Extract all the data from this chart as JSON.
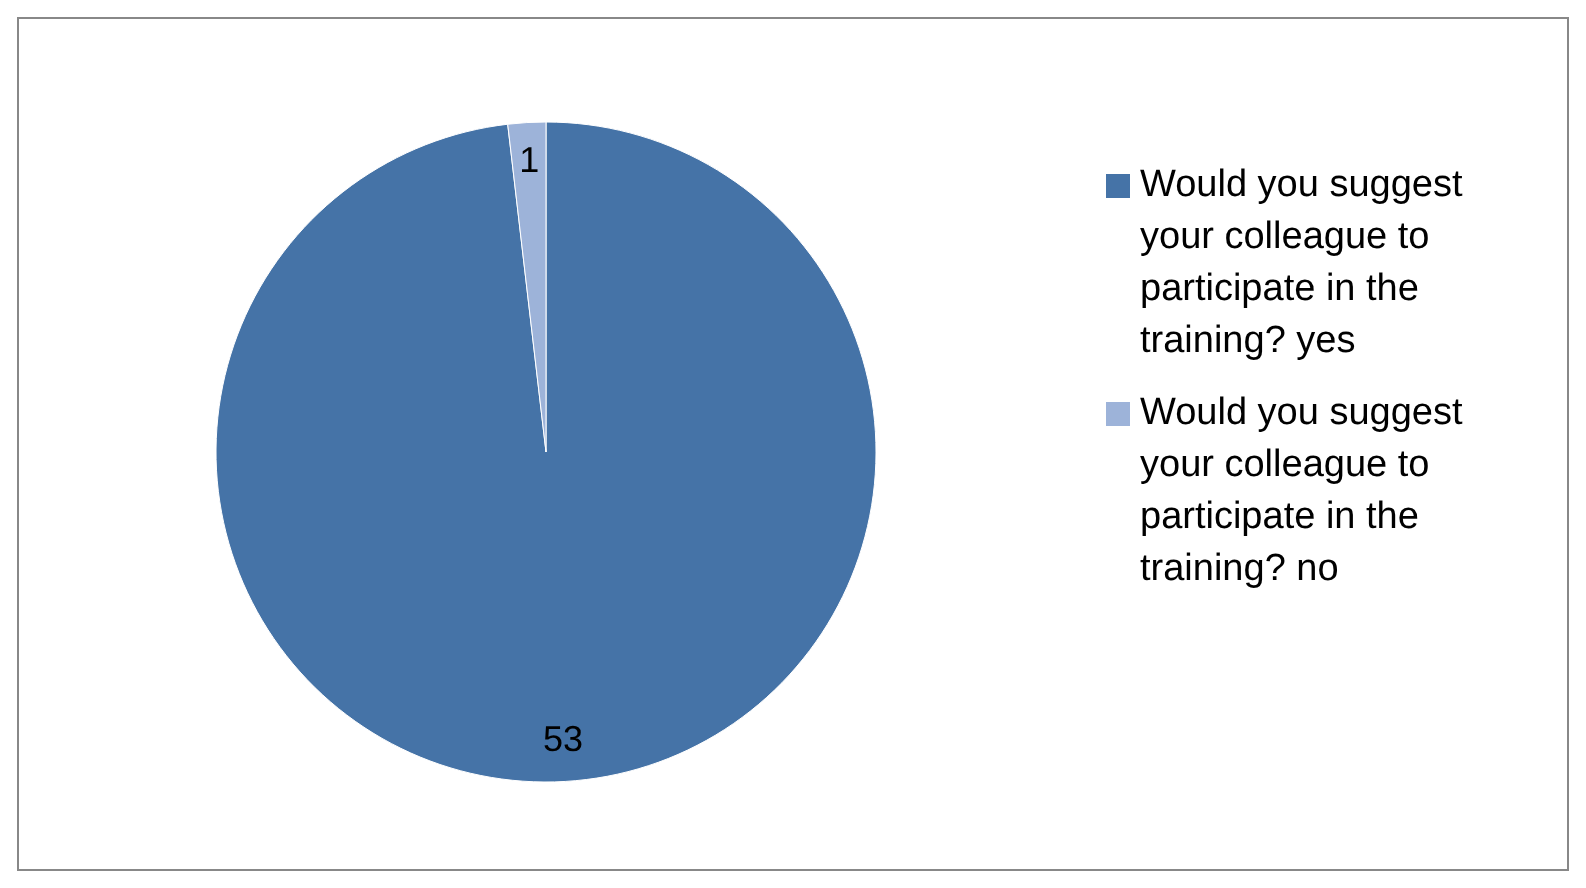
{
  "chart_data": {
    "type": "pie",
    "categories": [
      "Would you suggest your colleague to participate in the training? yes",
      "Would you suggest your colleague to participate in the training? no"
    ],
    "values": [
      53,
      1
    ],
    "colors": [
      "#4573a7",
      "#9db3d9"
    ],
    "data_labels": true,
    "legend": "right"
  }
}
